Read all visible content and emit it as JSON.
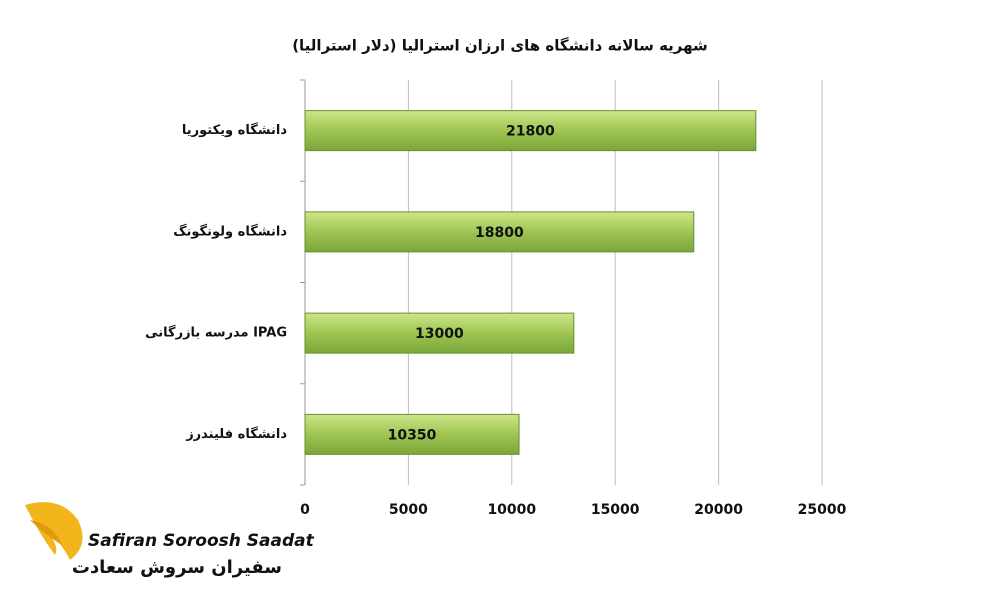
{
  "chart_data": {
    "type": "barh",
    "title": "شهریه سالانه دانشگاه های ارزان استرالیا (دلار استرالیا)",
    "categories": [
      "دانشگاه ویکتوریا",
      "دانشگاه ولونگونگ",
      "مدرسه بازرگانی IPAG",
      "دانشگاه فلیندرز"
    ],
    "values": [
      21800,
      18800,
      13000,
      10350
    ],
    "color": "#8db544",
    "xlim": [
      0,
      25000
    ],
    "xticks": [
      0,
      5000,
      10000,
      15000,
      20000,
      25000
    ],
    "grid": true
  },
  "logo": {
    "latin": "Safiran Soroosh Saadat",
    "persian": "سفیران سروش سعادت"
  }
}
